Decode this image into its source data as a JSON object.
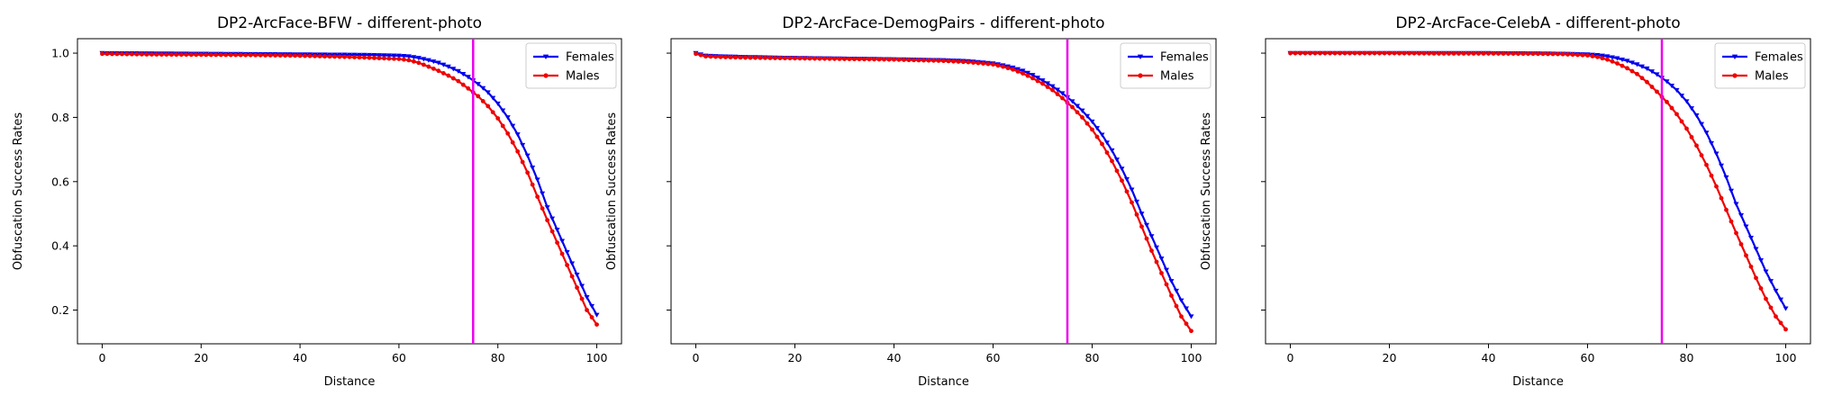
{
  "chart_data": [
    {
      "type": "line",
      "title": "DP2-ArcFace-BFW - different-photo",
      "xlabel": "Distance",
      "ylabel": "Obfuscation Success Rates",
      "xlim": [
        -5,
        105
      ],
      "ylim": [
        0.095,
        1.045
      ],
      "xticks": [
        0,
        20,
        40,
        60,
        80,
        100
      ],
      "yticks": [
        0.2,
        0.4,
        0.6,
        0.8,
        1.0
      ],
      "ytick_labels": [
        "0.2",
        "0.4",
        "0.6",
        "0.8",
        "1.0"
      ],
      "show_ytick_labels": true,
      "vline": {
        "x": 75,
        "color": "#ee00ee"
      },
      "legend_position": "upper-right",
      "series": [
        {
          "name": "Females",
          "color": "#0000ee",
          "marker": "triangle-down",
          "x": [
            0,
            10,
            20,
            30,
            40,
            50,
            55,
            60,
            62,
            64,
            66,
            68,
            70,
            72,
            74,
            76,
            78,
            80,
            82,
            84,
            86,
            88,
            90,
            92,
            94,
            96,
            98,
            100
          ],
          "y": [
            1.0,
            0.999,
            0.998,
            0.997,
            0.996,
            0.995,
            0.994,
            0.992,
            0.99,
            0.985,
            0.978,
            0.97,
            0.958,
            0.944,
            0.926,
            0.904,
            0.878,
            0.843,
            0.8,
            0.747,
            0.681,
            0.606,
            0.52,
            0.45,
            0.38,
            0.31,
            0.24,
            0.185
          ]
        },
        {
          "name": "Males",
          "color": "#ee0000",
          "marker": "circle",
          "x": [
            0,
            10,
            20,
            30,
            40,
            50,
            55,
            60,
            62,
            64,
            66,
            68,
            70,
            72,
            74,
            76,
            78,
            80,
            82,
            84,
            86,
            88,
            90,
            92,
            94,
            96,
            98,
            100
          ],
          "y": [
            0.998,
            0.996,
            0.995,
            0.994,
            0.992,
            0.988,
            0.985,
            0.982,
            0.978,
            0.97,
            0.958,
            0.945,
            0.93,
            0.913,
            0.89,
            0.866,
            0.835,
            0.797,
            0.75,
            0.694,
            0.628,
            0.553,
            0.48,
            0.41,
            0.34,
            0.27,
            0.2,
            0.155
          ]
        }
      ]
    },
    {
      "type": "line",
      "title": "DP2-ArcFace-DemogPairs - different-photo",
      "xlabel": "Distance",
      "ylabel": "Obfuscation Success Rates",
      "xlim": [
        -5,
        105
      ],
      "ylim": [
        0.095,
        1.045
      ],
      "xticks": [
        0,
        20,
        40,
        60,
        80,
        100
      ],
      "yticks": [
        0.2,
        0.4,
        0.6,
        0.8,
        1.0
      ],
      "ytick_labels": [
        "0.2",
        "0.4",
        "0.6",
        "0.8",
        "1.0"
      ],
      "show_ytick_labels": false,
      "vline": {
        "x": 75,
        "color": "#ee00ee"
      },
      "legend_position": "upper-right",
      "series": [
        {
          "name": "Females",
          "color": "#0000ee",
          "marker": "triangle-down",
          "x": [
            0,
            2,
            5,
            10,
            20,
            30,
            40,
            50,
            55,
            60,
            62,
            64,
            66,
            68,
            70,
            72,
            74,
            76,
            78,
            80,
            82,
            84,
            86,
            88,
            90,
            92,
            94,
            96,
            98,
            100
          ],
          "y": [
            1.0,
            0.992,
            0.99,
            0.988,
            0.985,
            0.983,
            0.981,
            0.978,
            0.975,
            0.968,
            0.962,
            0.955,
            0.945,
            0.932,
            0.915,
            0.897,
            0.875,
            0.85,
            0.821,
            0.787,
            0.746,
            0.697,
            0.64,
            0.575,
            0.5,
            0.43,
            0.36,
            0.29,
            0.23,
            0.18
          ]
        },
        {
          "name": "Males",
          "color": "#ee0000",
          "marker": "circle",
          "x": [
            0,
            2,
            5,
            10,
            20,
            30,
            40,
            50,
            55,
            60,
            62,
            64,
            66,
            68,
            70,
            72,
            74,
            76,
            78,
            80,
            82,
            84,
            86,
            88,
            90,
            92,
            94,
            96,
            98,
            100
          ],
          "y": [
            0.998,
            0.99,
            0.988,
            0.986,
            0.984,
            0.982,
            0.98,
            0.976,
            0.972,
            0.965,
            0.958,
            0.949,
            0.937,
            0.922,
            0.905,
            0.885,
            0.86,
            0.832,
            0.8,
            0.762,
            0.717,
            0.664,
            0.603,
            0.535,
            0.46,
            0.385,
            0.315,
            0.245,
            0.18,
            0.135
          ]
        }
      ]
    },
    {
      "type": "line",
      "title": "DP2-ArcFace-CelebA - different-photo",
      "xlabel": "Distance",
      "ylabel": "Obfuscation Success Rates",
      "xlim": [
        -5,
        105
      ],
      "ylim": [
        0.095,
        1.045
      ],
      "xticks": [
        0,
        20,
        40,
        60,
        80,
        100
      ],
      "yticks": [
        0.2,
        0.4,
        0.6,
        0.8,
        1.0
      ],
      "ytick_labels": [
        "0.2",
        "0.4",
        "0.6",
        "0.8",
        "1.0"
      ],
      "show_ytick_labels": false,
      "vline": {
        "x": 75,
        "color": "#ee00ee"
      },
      "legend_position": "upper-right",
      "series": [
        {
          "name": "Females",
          "color": "#0000ee",
          "marker": "triangle-down",
          "x": [
            0,
            10,
            20,
            30,
            40,
            50,
            55,
            60,
            62,
            64,
            66,
            68,
            70,
            72,
            74,
            76,
            78,
            80,
            82,
            84,
            86,
            88,
            90,
            92,
            94,
            96,
            98,
            100
          ],
          "y": [
            1.0,
            1.0,
            1.0,
            1.0,
            1.0,
            0.999,
            0.998,
            0.996,
            0.994,
            0.99,
            0.984,
            0.976,
            0.965,
            0.952,
            0.934,
            0.912,
            0.885,
            0.85,
            0.806,
            0.752,
            0.687,
            0.613,
            0.53,
            0.46,
            0.39,
            0.32,
            0.26,
            0.205
          ]
        },
        {
          "name": "Males",
          "color": "#ee0000",
          "marker": "circle",
          "x": [
            0,
            10,
            20,
            30,
            40,
            50,
            55,
            60,
            62,
            64,
            66,
            68,
            70,
            72,
            74,
            76,
            78,
            80,
            82,
            84,
            86,
            88,
            90,
            92,
            94,
            96,
            98,
            100
          ],
          "y": [
            1.0,
            1.0,
            1.0,
            0.999,
            0.999,
            0.998,
            0.997,
            0.993,
            0.988,
            0.98,
            0.968,
            0.953,
            0.935,
            0.91,
            0.88,
            0.848,
            0.81,
            0.765,
            0.712,
            0.652,
            0.585,
            0.512,
            0.44,
            0.37,
            0.3,
            0.235,
            0.18,
            0.14
          ]
        }
      ]
    }
  ]
}
